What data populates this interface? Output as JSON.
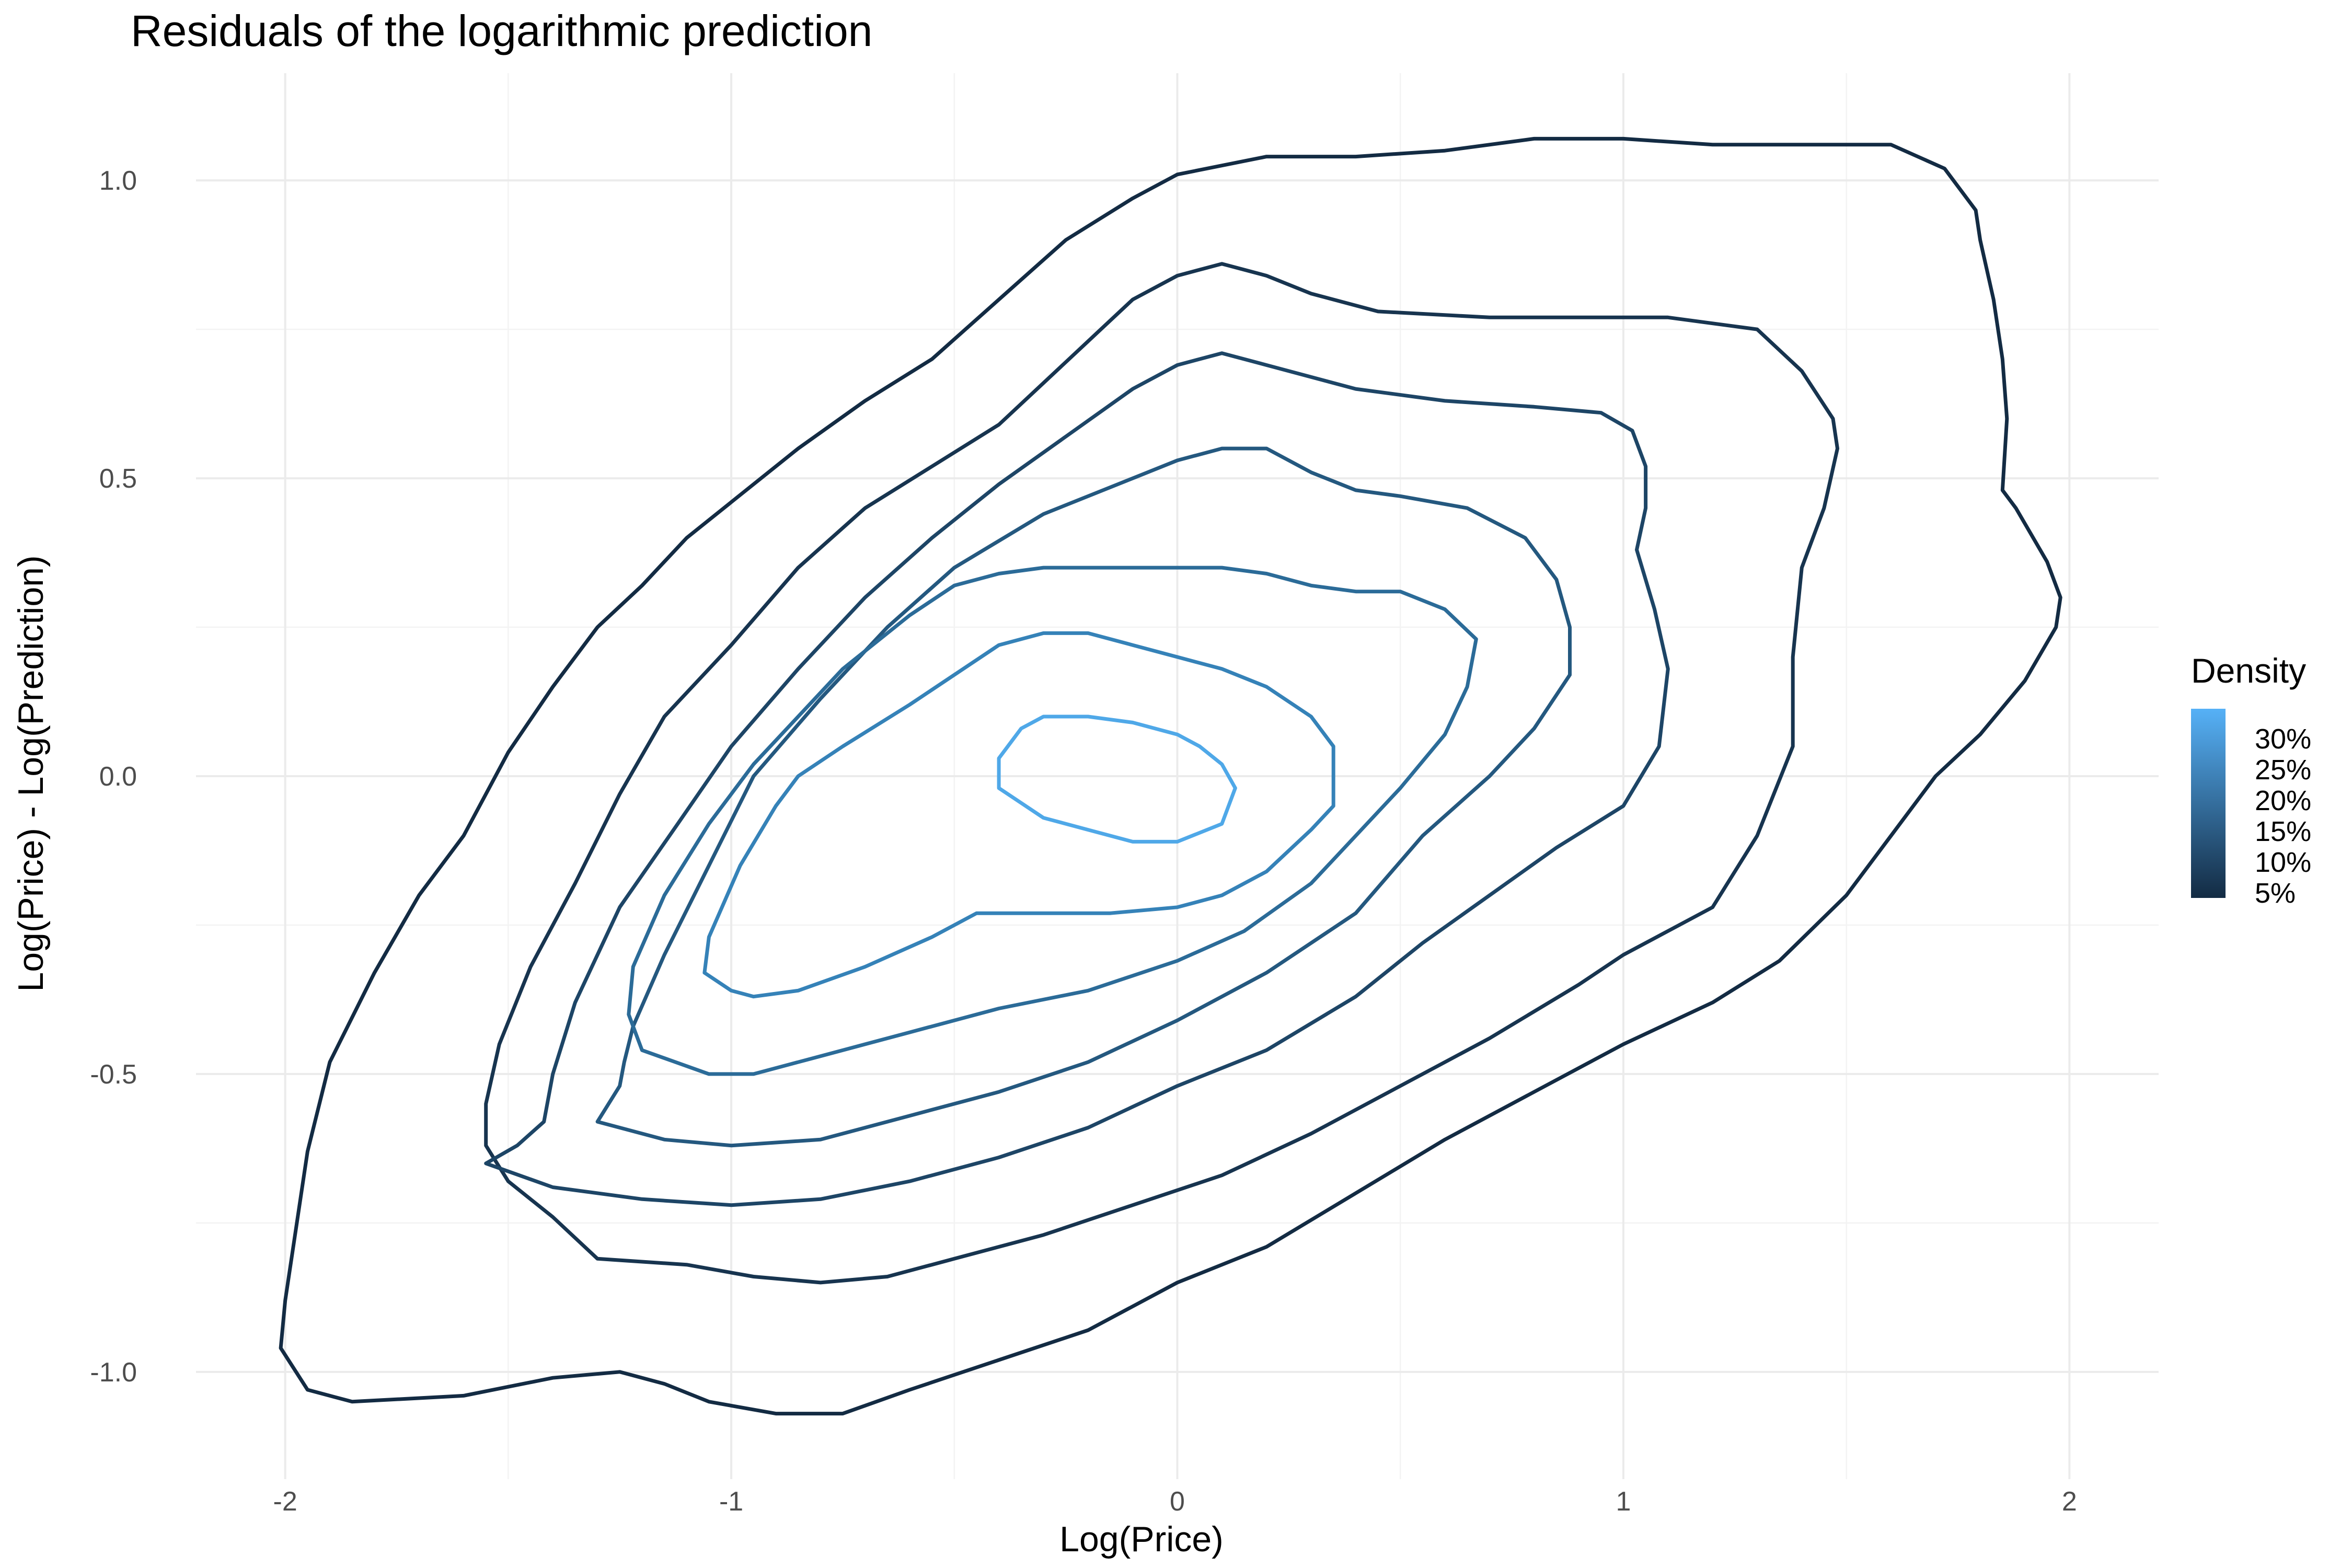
{
  "chart_data": {
    "type": "contour",
    "title": "Residuals of the logarithmic prediction",
    "xlabel": "Log(Price)",
    "ylabel": "Log(Price) - Log(Prediction)",
    "xlim": [
      -2.2,
      2.2
    ],
    "ylim": [
      -1.18,
      1.18
    ],
    "x_ticks": [
      -2,
      -1,
      0,
      1,
      2
    ],
    "x_tick_labels": [
      "-2",
      "-1",
      "0",
      "1",
      "2"
    ],
    "y_ticks": [
      -1.0,
      -0.5,
      0.0,
      0.5,
      1.0
    ],
    "y_tick_labels": [
      "-1.0",
      "-0.5",
      "0.0",
      "0.5",
      "1.0"
    ],
    "grid": true,
    "legend": {
      "title": "Density",
      "position": "right",
      "labels": [
        "30%",
        "25%",
        "20%",
        "15%",
        "10%",
        "5%"
      ],
      "color_low": "#132B43",
      "color_high": "#56B1F7"
    },
    "contours": [
      {
        "level": 0.02,
        "color": "#132b43",
        "points": [
          [
            -1.85,
            -1.05
          ],
          [
            -1.6,
            -1.04
          ],
          [
            -1.4,
            -1.01
          ],
          [
            -1.25,
            -1.0
          ],
          [
            -1.15,
            -1.02
          ],
          [
            -1.05,
            -1.05
          ],
          [
            -0.9,
            -1.07
          ],
          [
            -0.75,
            -1.07
          ],
          [
            -0.6,
            -1.03
          ],
          [
            -0.4,
            -0.98
          ],
          [
            -0.2,
            -0.93
          ],
          [
            0.0,
            -0.85
          ],
          [
            0.2,
            -0.79
          ],
          [
            0.4,
            -0.7
          ],
          [
            0.6,
            -0.61
          ],
          [
            0.8,
            -0.53
          ],
          [
            1.0,
            -0.45
          ],
          [
            1.2,
            -0.38
          ],
          [
            1.35,
            -0.31
          ],
          [
            1.5,
            -0.2
          ],
          [
            1.6,
            -0.1
          ],
          [
            1.7,
            0.0
          ],
          [
            1.8,
            0.07
          ],
          [
            1.9,
            0.16
          ],
          [
            1.97,
            0.25
          ],
          [
            1.98,
            0.3
          ],
          [
            1.95,
            0.36
          ],
          [
            1.88,
            0.45
          ],
          [
            1.85,
            0.48
          ],
          [
            1.86,
            0.6
          ],
          [
            1.85,
            0.7
          ],
          [
            1.83,
            0.8
          ],
          [
            1.8,
            0.9
          ],
          [
            1.79,
            0.95
          ],
          [
            1.72,
            1.02
          ],
          [
            1.6,
            1.06
          ],
          [
            1.4,
            1.06
          ],
          [
            1.2,
            1.06
          ],
          [
            1.0,
            1.07
          ],
          [
            0.8,
            1.07
          ],
          [
            0.6,
            1.05
          ],
          [
            0.4,
            1.04
          ],
          [
            0.2,
            1.04
          ],
          [
            0.0,
            1.01
          ],
          [
            -0.1,
            0.97
          ],
          [
            -0.25,
            0.9
          ],
          [
            -0.4,
            0.8
          ],
          [
            -0.55,
            0.7
          ],
          [
            -0.7,
            0.63
          ],
          [
            -0.85,
            0.55
          ],
          [
            -1.0,
            0.46
          ],
          [
            -1.1,
            0.4
          ],
          [
            -1.2,
            0.32
          ],
          [
            -1.3,
            0.25
          ],
          [
            -1.4,
            0.15
          ],
          [
            -1.5,
            0.04
          ],
          [
            -1.6,
            -0.1
          ],
          [
            -1.7,
            -0.2
          ],
          [
            -1.8,
            -0.33
          ],
          [
            -1.9,
            -0.48
          ],
          [
            -1.95,
            -0.63
          ],
          [
            -1.98,
            -0.78
          ],
          [
            -2.0,
            -0.88
          ],
          [
            -2.01,
            -0.96
          ],
          [
            -1.95,
            -1.03
          ],
          [
            -1.85,
            -1.05
          ]
        ]
      },
      {
        "level": 0.05,
        "color": "#17344f",
        "points": [
          [
            -1.3,
            -0.81
          ],
          [
            -1.1,
            -0.82
          ],
          [
            -0.95,
            -0.84
          ],
          [
            -0.8,
            -0.85
          ],
          [
            -0.65,
            -0.84
          ],
          [
            -0.5,
            -0.81
          ],
          [
            -0.3,
            -0.77
          ],
          [
            -0.1,
            -0.72
          ],
          [
            0.1,
            -0.67
          ],
          [
            0.3,
            -0.6
          ],
          [
            0.5,
            -0.52
          ],
          [
            0.7,
            -0.44
          ],
          [
            0.9,
            -0.35
          ],
          [
            1.0,
            -0.3
          ],
          [
            1.2,
            -0.22
          ],
          [
            1.3,
            -0.1
          ],
          [
            1.38,
            0.05
          ],
          [
            1.38,
            0.2
          ],
          [
            1.4,
            0.35
          ],
          [
            1.45,
            0.45
          ],
          [
            1.48,
            0.55
          ],
          [
            1.47,
            0.6
          ],
          [
            1.4,
            0.68
          ],
          [
            1.3,
            0.75
          ],
          [
            1.1,
            0.77
          ],
          [
            0.9,
            0.77
          ],
          [
            0.7,
            0.77
          ],
          [
            0.45,
            0.78
          ],
          [
            0.3,
            0.81
          ],
          [
            0.2,
            0.84
          ],
          [
            0.1,
            0.86
          ],
          [
            0.0,
            0.84
          ],
          [
            -0.1,
            0.8
          ],
          [
            -0.2,
            0.73
          ],
          [
            -0.3,
            0.66
          ],
          [
            -0.4,
            0.59
          ],
          [
            -0.55,
            0.52
          ],
          [
            -0.7,
            0.45
          ],
          [
            -0.85,
            0.35
          ],
          [
            -1.0,
            0.22
          ],
          [
            -1.15,
            0.1
          ],
          [
            -1.25,
            -0.03
          ],
          [
            -1.35,
            -0.18
          ],
          [
            -1.45,
            -0.32
          ],
          [
            -1.52,
            -0.45
          ],
          [
            -1.55,
            -0.55
          ],
          [
            -1.55,
            -0.62
          ],
          [
            -1.5,
            -0.68
          ],
          [
            -1.4,
            -0.74
          ],
          [
            -1.3,
            -0.81
          ]
        ]
      },
      {
        "level": 0.1,
        "color": "#1d4566",
        "points": [
          [
            -1.55,
            -0.65
          ],
          [
            -1.4,
            -0.69
          ],
          [
            -1.2,
            -0.71
          ],
          [
            -1.0,
            -0.72
          ],
          [
            -0.8,
            -0.71
          ],
          [
            -0.6,
            -0.68
          ],
          [
            -0.4,
            -0.64
          ],
          [
            -0.2,
            -0.59
          ],
          [
            0.0,
            -0.52
          ],
          [
            0.2,
            -0.46
          ],
          [
            0.4,
            -0.37
          ],
          [
            0.55,
            -0.28
          ],
          [
            0.7,
            -0.2
          ],
          [
            0.85,
            -0.12
          ],
          [
            1.0,
            -0.05
          ],
          [
            1.08,
            0.05
          ],
          [
            1.1,
            0.18
          ],
          [
            1.07,
            0.28
          ],
          [
            1.03,
            0.38
          ],
          [
            1.05,
            0.45
          ],
          [
            1.05,
            0.52
          ],
          [
            1.02,
            0.58
          ],
          [
            0.95,
            0.61
          ],
          [
            0.8,
            0.62
          ],
          [
            0.6,
            0.63
          ],
          [
            0.4,
            0.65
          ],
          [
            0.2,
            0.69
          ],
          [
            0.1,
            0.71
          ],
          [
            0.0,
            0.69
          ],
          [
            -0.1,
            0.65
          ],
          [
            -0.25,
            0.57
          ],
          [
            -0.4,
            0.49
          ],
          [
            -0.55,
            0.4
          ],
          [
            -0.7,
            0.3
          ],
          [
            -0.85,
            0.18
          ],
          [
            -1.0,
            0.05
          ],
          [
            -1.12,
            -0.08
          ],
          [
            -1.25,
            -0.22
          ],
          [
            -1.35,
            -0.38
          ],
          [
            -1.4,
            -0.5
          ],
          [
            -1.42,
            -0.58
          ],
          [
            -1.48,
            -0.62
          ],
          [
            -1.55,
            -0.65
          ]
        ]
      },
      {
        "level": 0.15,
        "color": "#24587f",
        "points": [
          [
            -1.3,
            -0.58
          ],
          [
            -1.15,
            -0.61
          ],
          [
            -1.0,
            -0.62
          ],
          [
            -0.8,
            -0.61
          ],
          [
            -0.6,
            -0.57
          ],
          [
            -0.4,
            -0.53
          ],
          [
            -0.2,
            -0.48
          ],
          [
            0.0,
            -0.41
          ],
          [
            0.2,
            -0.33
          ],
          [
            0.4,
            -0.23
          ],
          [
            0.55,
            -0.1
          ],
          [
            0.7,
            0.0
          ],
          [
            0.8,
            0.08
          ],
          [
            0.88,
            0.17
          ],
          [
            0.88,
            0.25
          ],
          [
            0.85,
            0.33
          ],
          [
            0.78,
            0.4
          ],
          [
            0.65,
            0.45
          ],
          [
            0.5,
            0.47
          ],
          [
            0.4,
            0.48
          ],
          [
            0.3,
            0.51
          ],
          [
            0.2,
            0.55
          ],
          [
            0.1,
            0.55
          ],
          [
            0.0,
            0.53
          ],
          [
            -0.1,
            0.5
          ],
          [
            -0.3,
            0.44
          ],
          [
            -0.5,
            0.35
          ],
          [
            -0.65,
            0.25
          ],
          [
            -0.8,
            0.13
          ],
          [
            -0.95,
            0.0
          ],
          [
            -1.05,
            -0.15
          ],
          [
            -1.15,
            -0.3
          ],
          [
            -1.22,
            -0.42
          ],
          [
            -1.24,
            -0.48
          ],
          [
            -1.25,
            -0.52
          ],
          [
            -1.3,
            -0.58
          ]
        ]
      },
      {
        "level": 0.2,
        "color": "#2b6b98",
        "points": [
          [
            -1.2,
            -0.46
          ],
          [
            -1.05,
            -0.5
          ],
          [
            -0.95,
            -0.5
          ],
          [
            -0.8,
            -0.47
          ],
          [
            -0.6,
            -0.43
          ],
          [
            -0.4,
            -0.39
          ],
          [
            -0.2,
            -0.36
          ],
          [
            0.0,
            -0.31
          ],
          [
            0.15,
            -0.26
          ],
          [
            0.3,
            -0.18
          ],
          [
            0.4,
            -0.1
          ],
          [
            0.5,
            -0.02
          ],
          [
            0.6,
            0.07
          ],
          [
            0.65,
            0.15
          ],
          [
            0.67,
            0.23
          ],
          [
            0.6,
            0.28
          ],
          [
            0.5,
            0.31
          ],
          [
            0.4,
            0.31
          ],
          [
            0.3,
            0.32
          ],
          [
            0.2,
            0.34
          ],
          [
            0.1,
            0.35
          ],
          [
            0.0,
            0.35
          ],
          [
            -0.1,
            0.35
          ],
          [
            -0.3,
            0.35
          ],
          [
            -0.4,
            0.34
          ],
          [
            -0.5,
            0.32
          ],
          [
            -0.6,
            0.27
          ],
          [
            -0.75,
            0.18
          ],
          [
            -0.85,
            0.1
          ],
          [
            -0.95,
            0.02
          ],
          [
            -1.05,
            -0.08
          ],
          [
            -1.15,
            -0.2
          ],
          [
            -1.22,
            -0.32
          ],
          [
            -1.23,
            -0.4
          ],
          [
            -1.2,
            -0.46
          ]
        ]
      },
      {
        "level": 0.25,
        "color": "#3582b8",
        "points": [
          [
            -1.0,
            -0.36
          ],
          [
            -0.95,
            -0.37
          ],
          [
            -0.85,
            -0.36
          ],
          [
            -0.7,
            -0.32
          ],
          [
            -0.55,
            -0.27
          ],
          [
            -0.45,
            -0.23
          ],
          [
            -0.3,
            -0.23
          ],
          [
            -0.15,
            -0.23
          ],
          [
            0.0,
            -0.22
          ],
          [
            0.1,
            -0.2
          ],
          [
            0.2,
            -0.16
          ],
          [
            0.3,
            -0.09
          ],
          [
            0.35,
            -0.05
          ],
          [
            0.35,
            0.05
          ],
          [
            0.3,
            0.1
          ],
          [
            0.2,
            0.15
          ],
          [
            0.1,
            0.18
          ],
          [
            0.0,
            0.2
          ],
          [
            -0.1,
            0.22
          ],
          [
            -0.2,
            0.24
          ],
          [
            -0.3,
            0.24
          ],
          [
            -0.4,
            0.22
          ],
          [
            -0.5,
            0.17
          ],
          [
            -0.6,
            0.12
          ],
          [
            -0.75,
            0.05
          ],
          [
            -0.85,
            0.0
          ],
          [
            -0.9,
            -0.05
          ],
          [
            -0.98,
            -0.15
          ],
          [
            -1.05,
            -0.27
          ],
          [
            -1.06,
            -0.33
          ],
          [
            -1.0,
            -0.36
          ]
        ]
      },
      {
        "level": 0.3,
        "color": "#4fa8e8",
        "points": [
          [
            -0.4,
            -0.02
          ],
          [
            -0.3,
            -0.07
          ],
          [
            -0.2,
            -0.09
          ],
          [
            -0.1,
            -0.11
          ],
          [
            0.0,
            -0.11
          ],
          [
            0.1,
            -0.08
          ],
          [
            0.13,
            -0.02
          ],
          [
            0.1,
            0.02
          ],
          [
            0.05,
            0.05
          ],
          [
            0.0,
            0.07
          ],
          [
            -0.1,
            0.09
          ],
          [
            -0.2,
            0.1
          ],
          [
            -0.3,
            0.1
          ],
          [
            -0.35,
            0.08
          ],
          [
            -0.38,
            0.05
          ],
          [
            -0.4,
            0.03
          ],
          [
            -0.4,
            -0.02
          ]
        ]
      }
    ]
  }
}
